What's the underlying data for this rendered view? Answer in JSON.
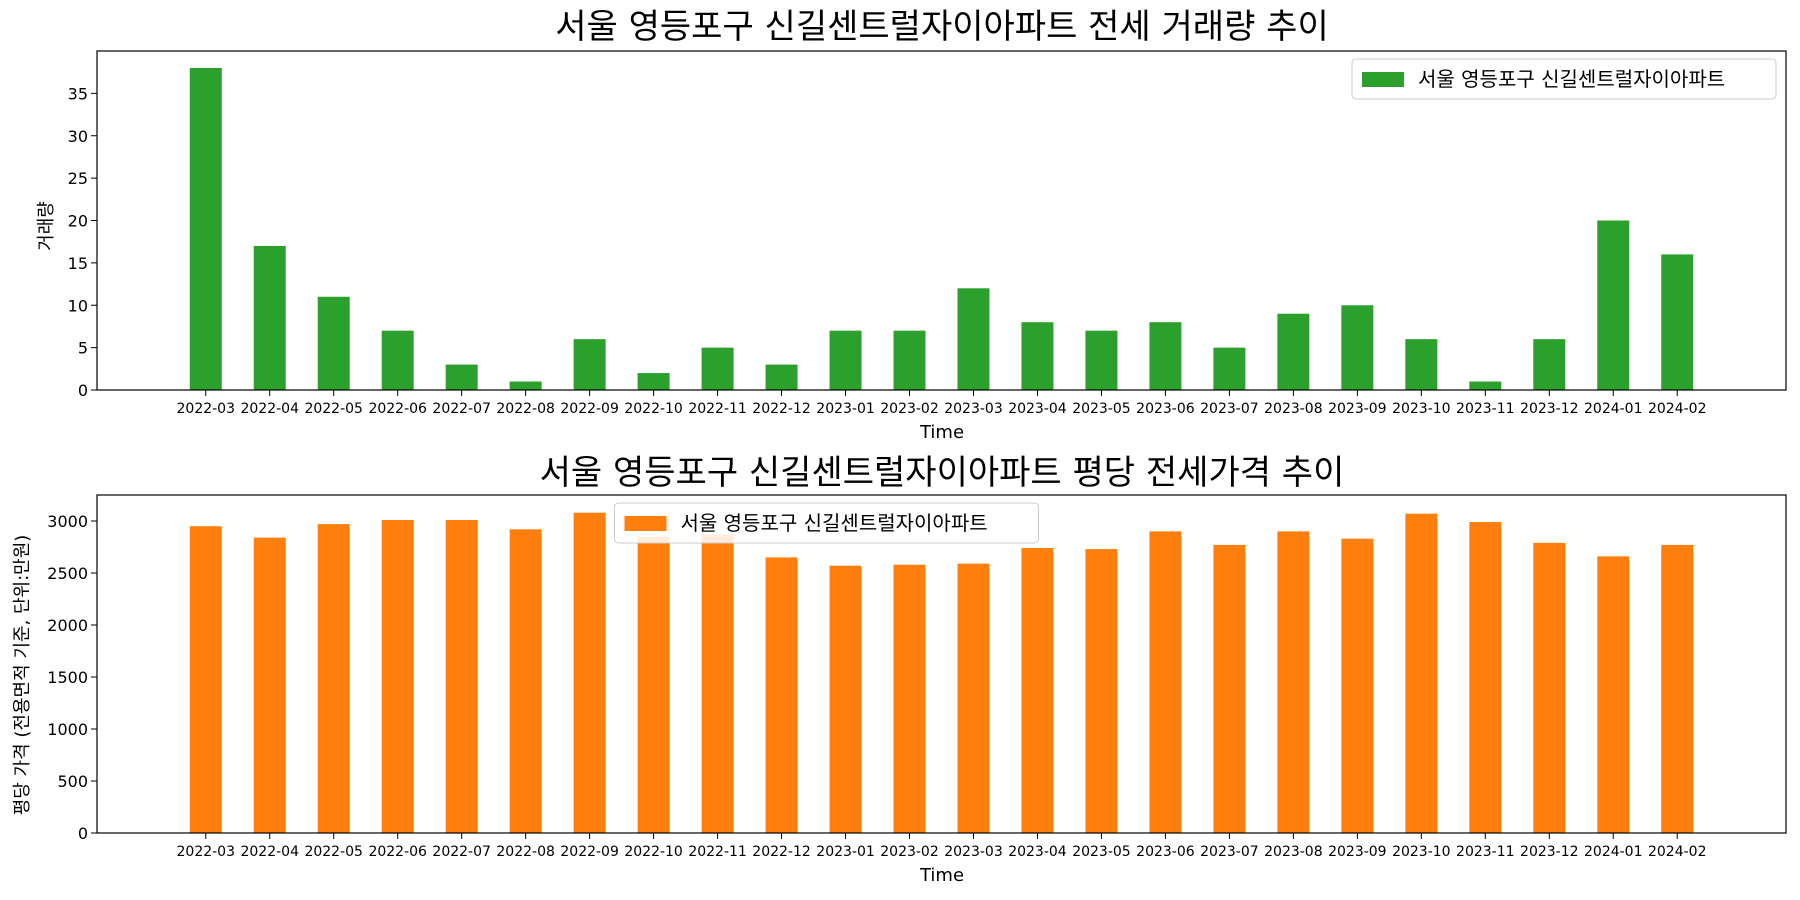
{
  "chart_data": [
    {
      "type": "bar",
      "title": "서울 영등포구 신길센트럴자이아파트 전세 거래량 추이",
      "xlabel": "Time",
      "ylabel": "거래량",
      "categories": [
        "2022-03",
        "2022-04",
        "2022-05",
        "2022-06",
        "2022-07",
        "2022-08",
        "2022-09",
        "2022-10",
        "2022-11",
        "2022-12",
        "2023-01",
        "2023-02",
        "2023-03",
        "2023-04",
        "2023-05",
        "2023-06",
        "2023-07",
        "2023-08",
        "2023-09",
        "2023-10",
        "2023-11",
        "2023-12",
        "2024-01",
        "2024-02"
      ],
      "series": [
        {
          "name": "서울 영등포구 신길센트럴자이아파트",
          "color": "#2ca02c",
          "values": [
            38,
            17,
            11,
            7,
            3,
            1,
            6,
            2,
            5,
            3,
            7,
            7,
            12,
            8,
            7,
            8,
            5,
            9,
            10,
            6,
            1,
            6,
            20,
            16
          ]
        }
      ],
      "ylim": [
        0,
        40
      ],
      "yticks": [
        0,
        5,
        10,
        15,
        20,
        25,
        30,
        35
      ],
      "legend_position": "top-right",
      "grid": false
    },
    {
      "type": "bar",
      "title": "서울 영등포구 신길센트럴자이아파트 평당 전세가격 추이",
      "xlabel": "Time",
      "ylabel": "평당 가격 (전용면적 기준, 단위:만원)",
      "categories": [
        "2022-03",
        "2022-04",
        "2022-05",
        "2022-06",
        "2022-07",
        "2022-08",
        "2022-09",
        "2022-10",
        "2022-11",
        "2022-12",
        "2023-01",
        "2023-02",
        "2023-03",
        "2023-04",
        "2023-05",
        "2023-06",
        "2023-07",
        "2023-08",
        "2023-09",
        "2023-10",
        "2023-11",
        "2023-12",
        "2024-01",
        "2024-02"
      ],
      "series": [
        {
          "name": "서울 영등포구 신길센트럴자이아파트",
          "color": "#ff7f0e",
          "values": [
            2950,
            2840,
            2970,
            3010,
            3010,
            2920,
            3080,
            2850,
            2870,
            2650,
            2570,
            2580,
            2590,
            2740,
            2730,
            2900,
            2770,
            2900,
            2830,
            3070,
            2990,
            2790,
            2660,
            2770
          ]
        }
      ],
      "ylim": [
        0,
        3250
      ],
      "yticks": [
        0,
        500,
        1000,
        1500,
        2000,
        2500,
        3000
      ],
      "legend_position": "upper center",
      "grid": false
    }
  ]
}
